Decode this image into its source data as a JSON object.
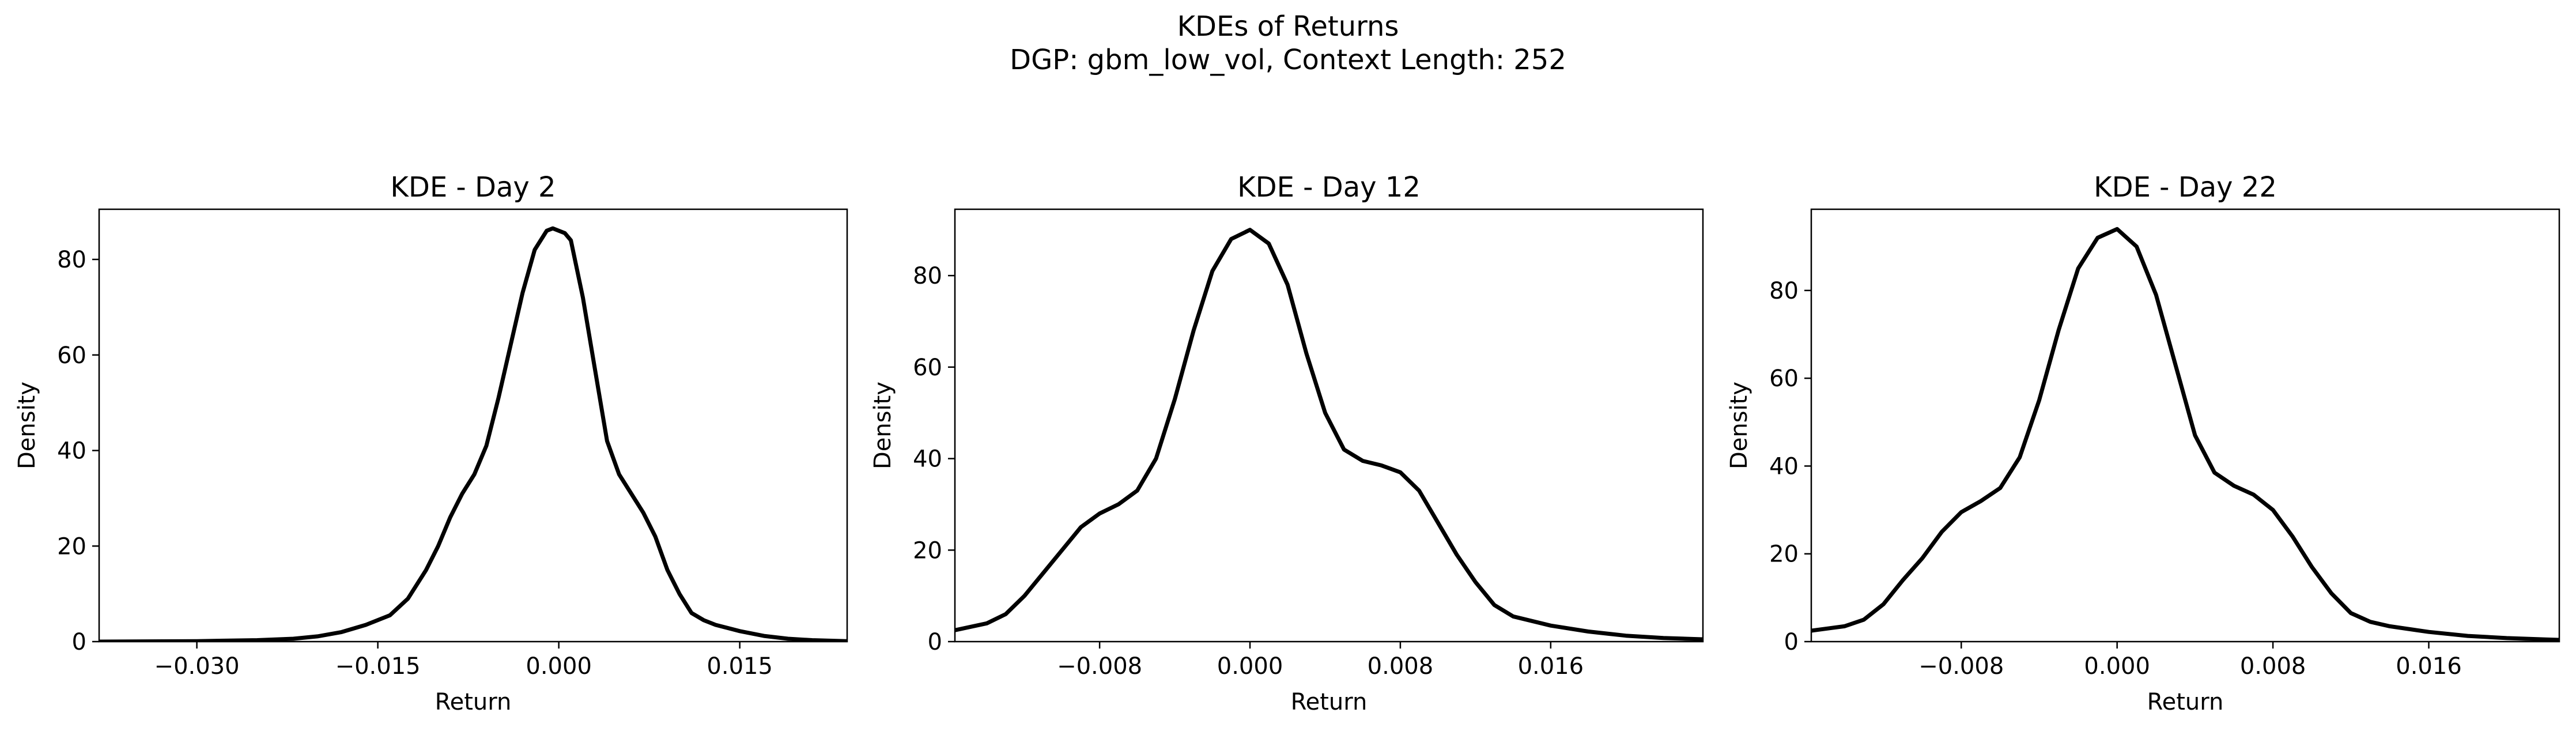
{
  "figure": {
    "suptitle_line1": "KDEs of Returns",
    "suptitle_line2": "DGP: gbm_low_vol, Context Length: 252"
  },
  "colors": {
    "line": "#000000",
    "background": "#ffffff",
    "axes": "#000000"
  },
  "chart_data": [
    {
      "type": "line",
      "title": "KDE - Day 2",
      "xlabel": "Return",
      "ylabel": "Density",
      "xlim": [
        -0.0381,
        0.0239
      ],
      "ylim": [
        0,
        90.5
      ],
      "xticks": [
        -0.03,
        -0.015,
        0.0,
        0.015
      ],
      "xtick_labels": [
        "−0.030",
        "−0.015",
        "0.000",
        "0.015"
      ],
      "yticks": [
        0,
        20,
        40,
        60,
        80
      ],
      "ytick_labels": [
        "0",
        "20",
        "40",
        "60",
        "80"
      ],
      "grid": false,
      "series": [
        {
          "x": [
            -0.0381,
            -0.03,
            -0.025,
            -0.022,
            -0.02,
            -0.018,
            -0.016,
            -0.014,
            -0.0125,
            -0.011,
            -0.01,
            -0.009,
            -0.008,
            -0.007,
            -0.006,
            -0.005,
            -0.004,
            -0.003,
            -0.002,
            -0.001,
            -0.0005,
            0.0,
            0.0005,
            0.001,
            0.002,
            0.003,
            0.004,
            0.005,
            0.006,
            0.007,
            0.008,
            0.009,
            0.01,
            0.011,
            0.012,
            0.013,
            0.015,
            0.017,
            0.019,
            0.021,
            0.0239
          ],
          "y": [
            0,
            0.1,
            0.3,
            0.6,
            1.1,
            2.0,
            3.5,
            5.5,
            9,
            15,
            20,
            26,
            31,
            35,
            41,
            51,
            62,
            73,
            82,
            86,
            86.5,
            86,
            85.5,
            84,
            72,
            57,
            42,
            35,
            31,
            27,
            22,
            15,
            10,
            6,
            4.5,
            3.5,
            2.2,
            1.2,
            0.6,
            0.3,
            0.1
          ]
        }
      ]
    },
    {
      "type": "line",
      "title": "KDE - Day 12",
      "xlabel": "Return",
      "ylabel": "Density",
      "xlim": [
        -0.0157,
        0.0241
      ],
      "ylim": [
        0,
        94.5
      ],
      "xticks": [
        -0.008,
        0.0,
        0.008,
        0.016
      ],
      "xtick_labels": [
        "−0.008",
        "0.000",
        "0.008",
        "0.016"
      ],
      "yticks": [
        0,
        20,
        40,
        60,
        80
      ],
      "ytick_labels": [
        "0",
        "20",
        "40",
        "60",
        "80"
      ],
      "grid": false,
      "series": [
        {
          "x": [
            -0.0157,
            -0.014,
            -0.013,
            -0.012,
            -0.011,
            -0.01,
            -0.009,
            -0.008,
            -0.007,
            -0.006,
            -0.005,
            -0.004,
            -0.003,
            -0.002,
            -0.001,
            0.0,
            0.001,
            0.002,
            0.003,
            0.004,
            0.005,
            0.006,
            0.007,
            0.008,
            0.009,
            0.01,
            0.011,
            0.012,
            0.013,
            0.014,
            0.016,
            0.018,
            0.02,
            0.022,
            0.0241
          ],
          "y": [
            2.5,
            4,
            6,
            10,
            15,
            20,
            25,
            28,
            30,
            33,
            40,
            53,
            68,
            81,
            88,
            90,
            87,
            78,
            63,
            50,
            42,
            39.5,
            38.5,
            37,
            33,
            26,
            19,
            13,
            8,
            5.5,
            3.5,
            2.2,
            1.3,
            0.8,
            0.5
          ]
        }
      ]
    },
    {
      "type": "line",
      "title": "KDE - Day 22",
      "xlabel": "Return",
      "ylabel": "Density",
      "xlim": [
        -0.0157,
        0.0227
      ],
      "ylim": [
        0,
        98.5
      ],
      "xticks": [
        -0.008,
        0.0,
        0.008,
        0.016
      ],
      "xtick_labels": [
        "−0.008",
        "0.000",
        "0.008",
        "0.016"
      ],
      "yticks": [
        0,
        20,
        40,
        60,
        80
      ],
      "ytick_labels": [
        "0",
        "20",
        "40",
        "60",
        "80"
      ],
      "grid": false,
      "series": [
        {
          "x": [
            -0.0157,
            -0.014,
            -0.013,
            -0.012,
            -0.011,
            -0.01,
            -0.009,
            -0.008,
            -0.007,
            -0.006,
            -0.005,
            -0.004,
            -0.003,
            -0.002,
            -0.001,
            0.0,
            0.001,
            0.002,
            0.003,
            0.004,
            0.005,
            0.006,
            0.007,
            0.008,
            0.009,
            0.01,
            0.011,
            0.012,
            0.013,
            0.014,
            0.016,
            0.018,
            0.02,
            0.022,
            0.0227
          ],
          "y": [
            2.5,
            3.5,
            5,
            8.5,
            14,
            19,
            25,
            29.5,
            32,
            35,
            42,
            55,
            71,
            85,
            92,
            94,
            90,
            79,
            63,
            47,
            38.5,
            35.5,
            33.5,
            30,
            24,
            17,
            11,
            6.5,
            4.5,
            3.5,
            2.2,
            1.3,
            0.8,
            0.5,
            0.4
          ]
        }
      ]
    }
  ]
}
